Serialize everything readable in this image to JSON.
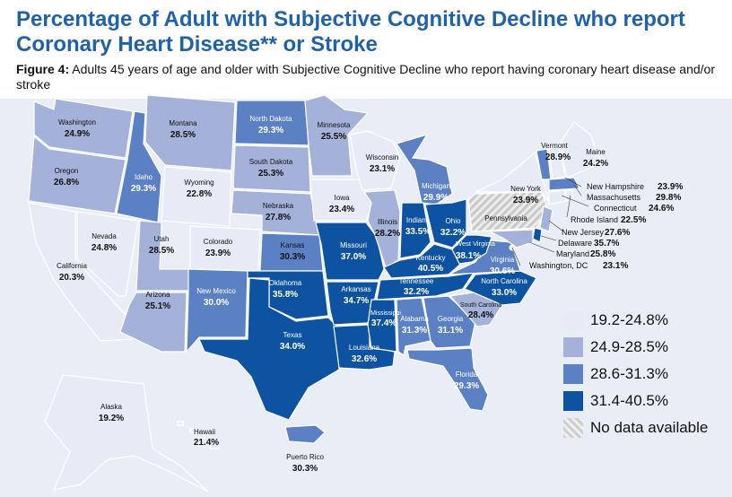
{
  "title": "Percentage of Adult with Subjective Cognitive Decline who report Coronary Heart Disease** or Stroke",
  "figure_label": "Figure 4:",
  "figure_caption": "Adults 45 years of age and older with Subjective Cognitive Decline who report having coronary heart disease and/or stroke",
  "colors": {
    "class1": "#e6ebf6",
    "class2": "#a4b2da",
    "class3": "#5b80c4",
    "class4": "#0d53a2",
    "nodata": "#d4d4d4"
  },
  "legend": [
    {
      "label": "19.2-24.8%",
      "class": "class1"
    },
    {
      "label": "24.9-28.5%",
      "class": "class2"
    },
    {
      "label": "28.6-31.3%",
      "class": "class3"
    },
    {
      "label": "31.4-40.5%",
      "class": "class4"
    },
    {
      "label": "No data available",
      "class": "nodata"
    }
  ],
  "states": {
    "WA": {
      "name": "Washington",
      "value": "24.9%",
      "class": "class2"
    },
    "OR": {
      "name": "Oregon",
      "value": "26.8%",
      "class": "class2"
    },
    "CA": {
      "name": "California",
      "value": "20.3%",
      "class": "class1"
    },
    "NV": {
      "name": "Nevada",
      "value": "24.8%",
      "class": "class1"
    },
    "ID": {
      "name": "Idaho",
      "value": "29.3%",
      "class": "class3"
    },
    "MT": {
      "name": "Montana",
      "value": "28.5%",
      "class": "class2"
    },
    "WY": {
      "name": "Wyoming",
      "value": "22.8%",
      "class": "class1"
    },
    "UT": {
      "name": "Utah",
      "value": "28.5%",
      "class": "class2"
    },
    "CO": {
      "name": "Colorado",
      "value": "23.9%",
      "class": "class1"
    },
    "AZ": {
      "name": "Arizona",
      "value": "25.1%",
      "class": "class2"
    },
    "NM": {
      "name": "New Mexico",
      "value": "30.0%",
      "class": "class3"
    },
    "ND": {
      "name": "North Dakota",
      "value": "29.3%",
      "class": "class3"
    },
    "SD": {
      "name": "South Dakota",
      "value": "25.3%",
      "class": "class2"
    },
    "NE": {
      "name": "Nebraska",
      "value": "27.8%",
      "class": "class2"
    },
    "KS": {
      "name": "Kansas",
      "value": "30.3%",
      "class": "class3"
    },
    "OK": {
      "name": "Oklahoma",
      "value": "35.8%",
      "class": "class4"
    },
    "TX": {
      "name": "Texas",
      "value": "34.0%",
      "class": "class4"
    },
    "MN": {
      "name": "Minnesota",
      "value": "25.5%",
      "class": "class2"
    },
    "IA": {
      "name": "Iowa",
      "value": "23.4%",
      "class": "class1"
    },
    "MO": {
      "name": "Missouri",
      "value": "37.0%",
      "class": "class4"
    },
    "AR": {
      "name": "Arkansas",
      "value": "34.7%",
      "class": "class4"
    },
    "LA": {
      "name": "Louisiana",
      "value": "32.6%",
      "class": "class4"
    },
    "WI": {
      "name": "Wisconsin",
      "value": "23.1%",
      "class": "class1"
    },
    "IL": {
      "name": "Illinois",
      "value": "28.2%",
      "class": "class2"
    },
    "MI": {
      "name": "Michigan",
      "value": "29.9%",
      "class": "class3"
    },
    "IN": {
      "name": "Indiana",
      "value": "33.5%",
      "class": "class4"
    },
    "OH": {
      "name": "Ohio",
      "value": "32.2%",
      "class": "class4"
    },
    "KY": {
      "name": "Kentucky",
      "value": "40.5%",
      "class": "class4"
    },
    "TN": {
      "name": "Tennessee",
      "value": "32.2%",
      "class": "class4"
    },
    "MS": {
      "name": "Mississippi",
      "value": "37.4%",
      "class": "class4"
    },
    "AL": {
      "name": "Alabama",
      "value": "31.3%",
      "class": "class3"
    },
    "GA": {
      "name": "Georgia",
      "value": "31.1%",
      "class": "class3"
    },
    "FL": {
      "name": "Florida",
      "value": "29.3%",
      "class": "class3"
    },
    "SC": {
      "name": "South Carolina",
      "value": "28.4%",
      "class": "class2"
    },
    "NC": {
      "name": "North Carolina",
      "value": "33.0%",
      "class": "class4"
    },
    "VA": {
      "name": "Virginia",
      "value": "30.6%",
      "class": "class3"
    },
    "WV": {
      "name": "West Virginia",
      "value": "38.1%",
      "class": "class4"
    },
    "PA": {
      "name": "Pennsylvania",
      "value": "",
      "class": "nodata"
    },
    "NY": {
      "name": "New York",
      "value": "23.9%",
      "class": "class1"
    },
    "VT": {
      "name": "Vermont",
      "value": "28.9%",
      "class": "class3"
    },
    "ME": {
      "name": "Maine",
      "value": "24.2%",
      "class": "class1"
    },
    "NH": {
      "name": "New Hampshire",
      "value": "23.9%",
      "class": "class1"
    },
    "MA": {
      "name": "Massachusetts",
      "value": "29.8%",
      "class": "class3"
    },
    "CT": {
      "name": "Connecticut",
      "value": "24.6%",
      "class": "class1"
    },
    "RI": {
      "name": "Rhode Island",
      "value": "22.5%",
      "class": "class1"
    },
    "NJ": {
      "name": "New Jersey",
      "value": "27.6%",
      "class": "class2"
    },
    "DE": {
      "name": "Delaware",
      "value": "35.7%",
      "class": "class4"
    },
    "MD": {
      "name": "Maryland",
      "value": "25.8%",
      "class": "class2"
    },
    "DC": {
      "name": "Washington, DC",
      "value": "23.1%",
      "class": "class1"
    },
    "AK": {
      "name": "Alaska",
      "value": "19.2%",
      "class": "class1"
    },
    "HI": {
      "name": "Hawaii",
      "value": "21.4%",
      "class": "class1"
    },
    "PR": {
      "name": "Puerto Rico",
      "value": "30.3%",
      "class": "class3"
    }
  }
}
